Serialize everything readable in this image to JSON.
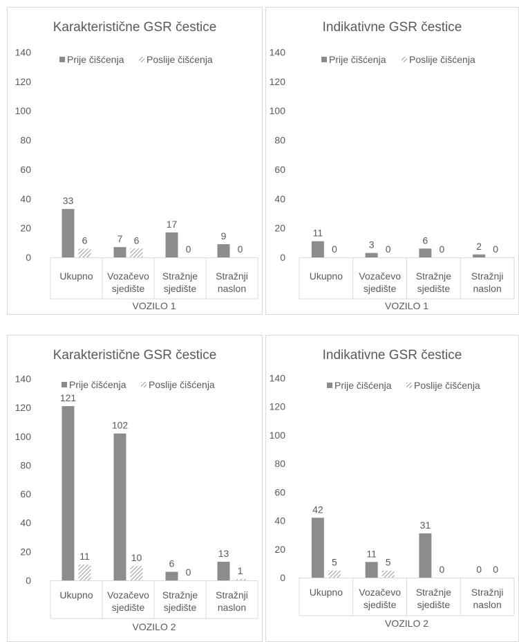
{
  "chart_data": [
    {
      "type": "bar",
      "title": "Karakteristične GSR čestice",
      "group_label": "VOZILO 1",
      "categories": [
        [
          "Ukupno"
        ],
        [
          "Vozačevo",
          "sjedište"
        ],
        [
          "Stražnje",
          "sjedište"
        ],
        [
          "Stražnji",
          "naslon"
        ]
      ],
      "series": [
        {
          "name": "Prije čišćenja",
          "values": [
            33,
            7,
            17,
            9
          ]
        },
        {
          "name": "Poslije čišćenja",
          "values": [
            6,
            6,
            0,
            0
          ]
        }
      ],
      "ylim": [
        0,
        140
      ],
      "yticks": [
        0,
        20,
        40,
        60,
        80,
        100,
        120,
        140
      ],
      "gridlines": false,
      "legend": "top"
    },
    {
      "type": "bar",
      "title": "Indikativne GSR čestice",
      "group_label": "VOZILO 1",
      "categories": [
        [
          "Ukupno"
        ],
        [
          "Vozačevo",
          "sjedište"
        ],
        [
          "Stražnje",
          "sjedište"
        ],
        [
          "Stražnji",
          "naslon"
        ]
      ],
      "series": [
        {
          "name": "Prije čišćenja",
          "values": [
            11,
            3,
            6,
            2
          ]
        },
        {
          "name": "Poslije čišćenja",
          "values": [
            0,
            0,
            0,
            0
          ]
        }
      ],
      "ylim": [
        0,
        140
      ],
      "yticks": [
        0,
        20,
        40,
        60,
        80,
        100,
        120,
        140
      ],
      "gridlines": false,
      "legend": "top"
    },
    {
      "type": "bar",
      "title": "Karakteristične GSR čestice",
      "group_label": "VOZILO 2",
      "categories": [
        [
          "Ukupno"
        ],
        [
          "Vozačevo",
          "sjedište"
        ],
        [
          "Stražnje",
          "sjedište"
        ],
        [
          "Stražnji",
          "naslon"
        ]
      ],
      "series": [
        {
          "name": "Prije čišćenja",
          "values": [
            121,
            102,
            6,
            13
          ]
        },
        {
          "name": "Poslije čišćenja",
          "values": [
            11,
            10,
            0,
            1
          ]
        }
      ],
      "ylim": [
        0,
        140
      ],
      "yticks": [
        0,
        20,
        40,
        60,
        80,
        100,
        120,
        140
      ],
      "gridlines": false,
      "legend": "top"
    },
    {
      "type": "bar",
      "title": "Indikativne GSR čestice",
      "group_label": "VOZILO 2",
      "categories": [
        [
          "Ukupno"
        ],
        [
          "Vozačevo",
          "sjedište"
        ],
        [
          "Stražnje",
          "sjedište"
        ],
        [
          "Stražnji",
          "naslon"
        ]
      ],
      "series": [
        {
          "name": "Prije čišćenja",
          "values": [
            42,
            11,
            31,
            0
          ]
        },
        {
          "name": "Poslije čišćenja",
          "values": [
            5,
            5,
            0,
            0
          ]
        }
      ],
      "ylim": [
        0,
        140
      ],
      "yticks": [
        0,
        20,
        40,
        60,
        80,
        100,
        120,
        140
      ],
      "gridlines": false,
      "legend": "top"
    }
  ],
  "colors": {
    "before": "#8c8c8c",
    "after_hatch": "#7f7f7f",
    "text": "#595959",
    "border": "#d9d9d9"
  }
}
